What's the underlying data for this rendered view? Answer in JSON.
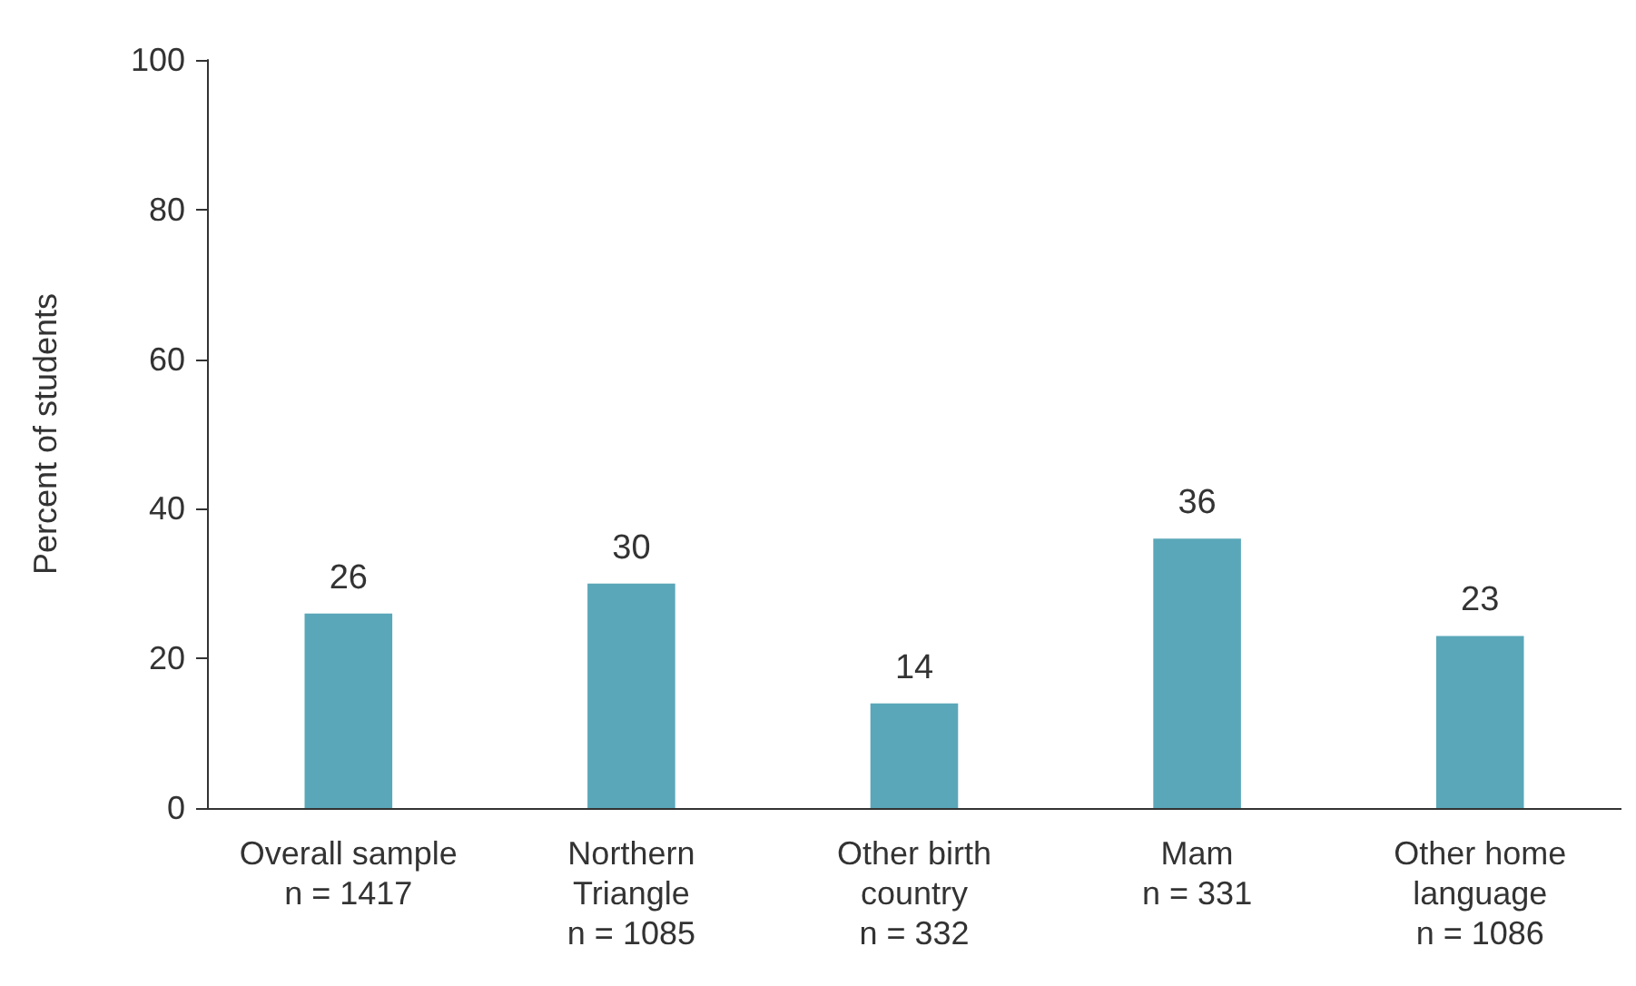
{
  "chart_data": {
    "type": "bar",
    "ylabel": "Percent of students",
    "categories": [
      "Overall sample\nn = 1417",
      "Northern\nTriangle\nn = 1085",
      "Other birth\ncountry\nn = 332",
      "Mam\nn = 331",
      "Other home\nlanguage\nn = 1086"
    ],
    "values": [
      26,
      30,
      14,
      36,
      23
    ],
    "color": "#5aa7b9",
    "ylim": [
      0,
      100
    ],
    "yticks": [
      0,
      20,
      40,
      60,
      80,
      100
    ],
    "grid": false,
    "data_labels": true
  }
}
